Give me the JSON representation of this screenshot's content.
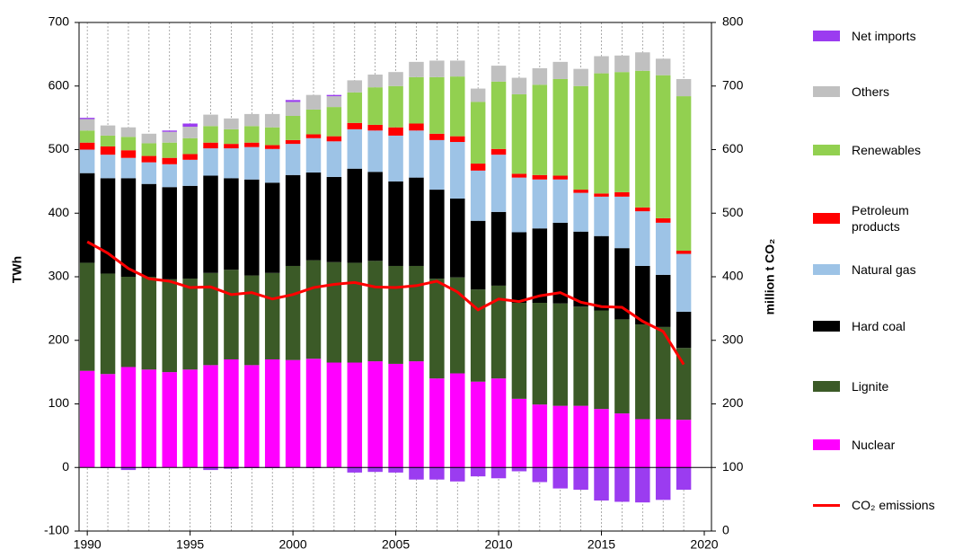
{
  "chart_data": {
    "type": "bar",
    "x": [
      1990,
      1991,
      1992,
      1993,
      1994,
      1995,
      1996,
      1997,
      1998,
      1999,
      2000,
      2001,
      2002,
      2003,
      2004,
      2005,
      2006,
      2007,
      2008,
      2009,
      2010,
      2011,
      2012,
      2013,
      2014,
      2015,
      2016,
      2017,
      2018,
      2019
    ],
    "xlim": [
      1989.6,
      2020.35
    ],
    "xticks": [
      1990,
      1995,
      2000,
      2005,
      2010,
      2015,
      2020
    ],
    "ylim": [
      -100,
      700
    ],
    "yticks": [
      -100,
      0,
      100,
      200,
      300,
      400,
      500,
      600,
      700
    ],
    "y2lim": [
      0,
      800
    ],
    "y2ticks": [
      0,
      100,
      200,
      300,
      400,
      500,
      600,
      700,
      800
    ],
    "y_label": "TWh",
    "y2_label": "million t CO₂",
    "stacked": true,
    "grid": true,
    "series": [
      {
        "name": "Nuclear",
        "color": "#ff00ff",
        "values": [
          152,
          147,
          158,
          154,
          150,
          154,
          161,
          170,
          161,
          170,
          169,
          171,
          165,
          165,
          167,
          163,
          167,
          140,
          148,
          135,
          140,
          108,
          99,
          97,
          97,
          92,
          85,
          76,
          76,
          75
        ]
      },
      {
        "name": "Lignite",
        "color": "#3b5a27",
        "values": [
          170,
          158,
          142,
          146,
          146,
          143,
          145,
          141,
          141,
          136,
          148,
          155,
          158,
          157,
          158,
          154,
          150,
          157,
          151,
          145,
          146,
          151,
          160,
          161,
          156,
          155,
          148,
          149,
          145,
          113
        ]
      },
      {
        "name": "Hard coal",
        "color": "#000000",
        "values": [
          141,
          150,
          155,
          146,
          145,
          146,
          153,
          144,
          151,
          142,
          143,
          138,
          134,
          148,
          140,
          133,
          139,
          140,
          124,
          108,
          116,
          111,
          117,
          127,
          118,
          117,
          112,
          92,
          82,
          57
        ]
      },
      {
        "name": "Natural gas",
        "color": "#9dc3e6",
        "values": [
          37,
          37,
          32,
          34,
          36,
          41,
          43,
          47,
          51,
          53,
          49,
          54,
          56,
          62,
          65,
          72,
          74,
          78,
          89,
          79,
          90,
          86,
          77,
          68,
          61,
          62,
          81,
          86,
          82,
          91
        ]
      },
      {
        "name": "Petroleum products",
        "color": "#ff0000",
        "values": [
          11,
          13,
          12,
          10,
          10,
          9,
          9,
          7,
          7,
          6,
          6,
          6,
          8,
          10,
          9,
          13,
          11,
          10,
          9,
          11,
          9,
          6,
          7,
          6,
          5,
          5,
          7,
          6,
          7,
          5
        ]
      },
      {
        "name": "Renewables",
        "color": "#92d050",
        "values": [
          19,
          17,
          21,
          20,
          24,
          25,
          26,
          23,
          26,
          28,
          38,
          39,
          46,
          48,
          59,
          65,
          73,
          89,
          94,
          97,
          106,
          125,
          142,
          152,
          163,
          189,
          189,
          215,
          225,
          243
        ]
      },
      {
        "name": "Others",
        "color": "#c0c0c0",
        "values": [
          18,
          16,
          15,
          15,
          17,
          18,
          18,
          17,
          19,
          21,
          22,
          23,
          17,
          19,
          20,
          22,
          24,
          26,
          25,
          21,
          25,
          26,
          26,
          27,
          27,
          27,
          26,
          29,
          26,
          27
        ]
      },
      {
        "name": "Net imports",
        "color": "#9b3cf0",
        "values": [
          2,
          -1,
          -4,
          -1,
          2,
          5,
          -4,
          -2,
          -1,
          -1,
          3,
          -1,
          2,
          -8,
          -7,
          -8,
          -19,
          -19,
          -22,
          -14,
          -17,
          -6,
          -23,
          -33,
          -35,
          -52,
          -54,
          -55,
          -51,
          -35
        ]
      },
      {
        "name": "CO₂ emissions",
        "color": "#ff0000",
        "type": "line",
        "axis": "y2",
        "values": [
          455,
          437,
          413,
          397,
          393,
          383,
          384,
          372,
          375,
          365,
          372,
          383,
          388,
          391,
          384,
          383,
          386,
          393,
          376,
          348,
          365,
          361,
          370,
          375,
          360,
          353,
          352,
          330,
          314,
          262
        ]
      }
    ]
  }
}
